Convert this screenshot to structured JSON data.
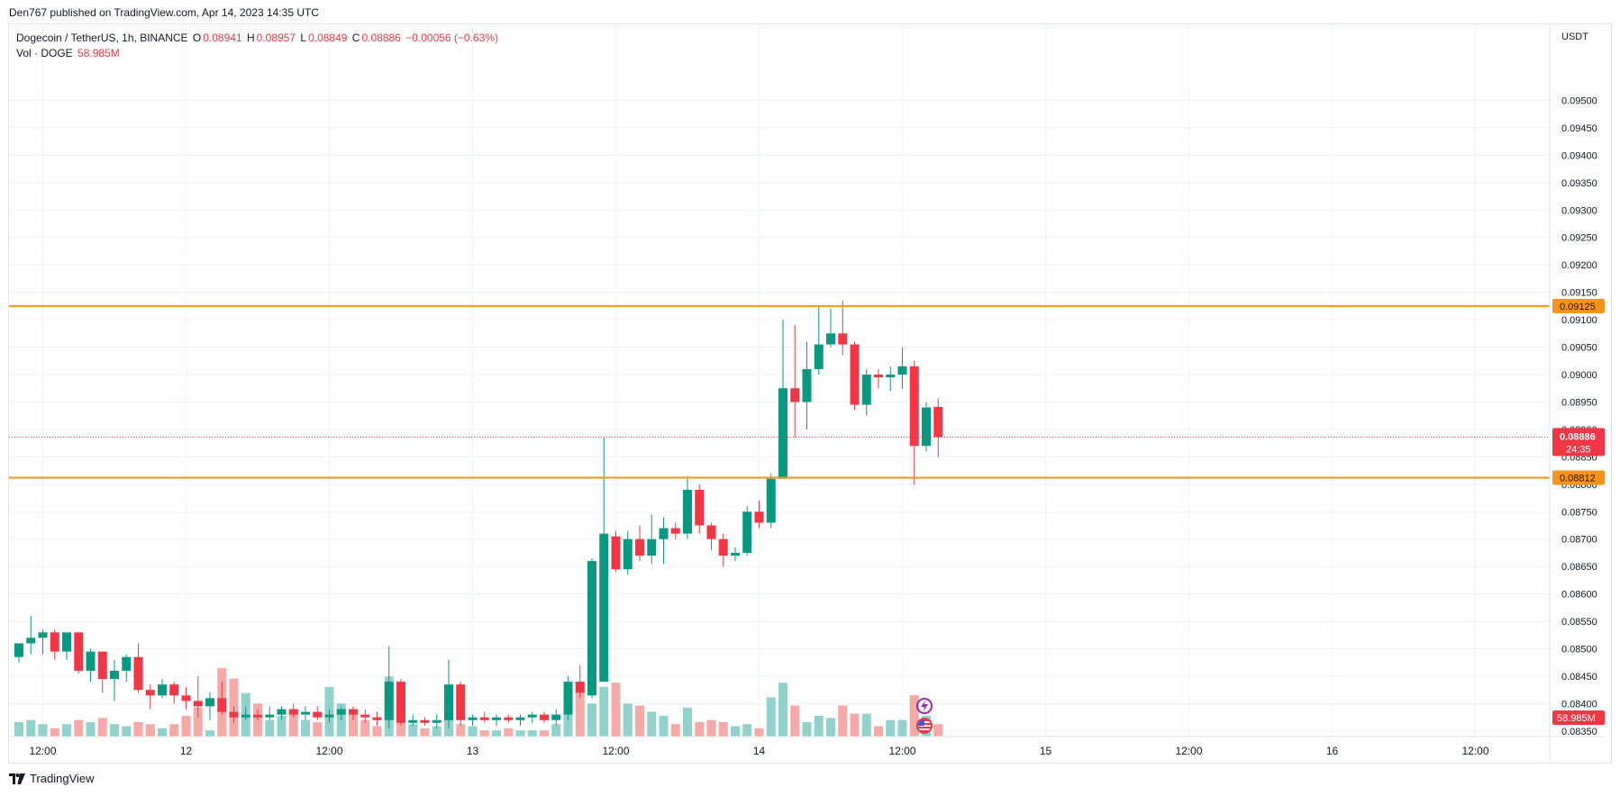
{
  "header": {
    "published": "Den767 published on TradingView.com, Apr 14, 2023 14:35 UTC"
  },
  "legend": {
    "symbol": "Dogecoin / TetherUS, 1h, BINANCE",
    "open_label": "O",
    "open": "0.08941",
    "high_label": "H",
    "high": "0.08957",
    "low_label": "L",
    "low": "0.08849",
    "close_label": "C",
    "close": "0.08886",
    "change": "−0.00056 (−0.63%)",
    "vol_label": "Vol · DOGE",
    "vol": "58.985M"
  },
  "footer": {
    "brand": "TradingView"
  },
  "icons": [
    "lightning-icon",
    "us-flag-icon",
    "tradingview-logo-icon"
  ],
  "colors": {
    "up": "#089981",
    "down": "#f23645",
    "up_vol": "#92d2cc",
    "down_vol": "#f7a9a7",
    "level": "#f7931a",
    "grid": "#f0f3fa"
  },
  "chart_data": {
    "type": "candlestick",
    "interval": "1h",
    "quote_currency": "USDT",
    "x_start": "2023-04-11 10:00",
    "ylim": [
      0.0834,
      0.0955
    ],
    "y_ticks": [
      "0.09500",
      "0.09450",
      "0.09400",
      "0.09350",
      "0.09300",
      "0.09250",
      "0.09200",
      "0.09150",
      "0.09100",
      "0.09050",
      "0.09000",
      "0.08950",
      "0.08900",
      "0.08850",
      "0.08800",
      "0.08750",
      "0.08700",
      "0.08650",
      "0.08600",
      "0.08550",
      "0.08500",
      "0.08450",
      "0.08400",
      "0.08350"
    ],
    "x_ticks": [
      {
        "label": "12:00",
        "time": "2023-04-11 12:00"
      },
      {
        "label": "12",
        "time": "2023-04-12 00:00"
      },
      {
        "label": "12:00",
        "time": "2023-04-12 12:00"
      },
      {
        "label": "13",
        "time": "2023-04-13 00:00"
      },
      {
        "label": "12:00",
        "time": "2023-04-13 12:00"
      },
      {
        "label": "14",
        "time": "2023-04-14 00:00"
      },
      {
        "label": "12:00",
        "time": "2023-04-14 12:00"
      },
      {
        "label": "15",
        "time": "2023-04-15 00:00"
      },
      {
        "label": "12:00",
        "time": "2023-04-15 12:00"
      },
      {
        "label": "16",
        "time": "2023-04-16 00:00"
      },
      {
        "label": "12:00",
        "time": "2023-04-16 12:00"
      }
    ],
    "horizontal_levels": [
      {
        "label": "0.09125",
        "value": 0.09125
      },
      {
        "label": "0.08812",
        "value": 0.08812
      }
    ],
    "last_price": {
      "label": "0.08886",
      "value": 0.08886,
      "countdown": "24:35"
    },
    "last_volume": {
      "label": "58.985M"
    },
    "candles": [
      {
        "o": 0.08485,
        "h": 0.08505,
        "l": 0.08475,
        "c": 0.0851,
        "v": 0.7
      },
      {
        "o": 0.0851,
        "h": 0.0856,
        "l": 0.0849,
        "c": 0.0852,
        "v": 0.8
      },
      {
        "o": 0.0852,
        "h": 0.08535,
        "l": 0.0849,
        "c": 0.0853,
        "v": 0.6
      },
      {
        "o": 0.0853,
        "h": 0.08535,
        "l": 0.0848,
        "c": 0.08495,
        "v": 0.4
      },
      {
        "o": 0.08495,
        "h": 0.0852,
        "l": 0.0848,
        "c": 0.0853,
        "v": 0.6
      },
      {
        "o": 0.0853,
        "h": 0.0853,
        "l": 0.08455,
        "c": 0.0846,
        "v": 0.8
      },
      {
        "o": 0.0846,
        "h": 0.085,
        "l": 0.0844,
        "c": 0.08495,
        "v": 0.7
      },
      {
        "o": 0.08495,
        "h": 0.08495,
        "l": 0.0842,
        "c": 0.08445,
        "v": 0.9
      },
      {
        "o": 0.08445,
        "h": 0.0848,
        "l": 0.08405,
        "c": 0.0846,
        "v": 0.6
      },
      {
        "o": 0.0846,
        "h": 0.0849,
        "l": 0.0844,
        "c": 0.08485,
        "v": 0.5
      },
      {
        "o": 0.08485,
        "h": 0.0851,
        "l": 0.0842,
        "c": 0.08425,
        "v": 0.7
      },
      {
        "o": 0.08425,
        "h": 0.08435,
        "l": 0.0839,
        "c": 0.08415,
        "v": 0.6
      },
      {
        "o": 0.08415,
        "h": 0.08445,
        "l": 0.0841,
        "c": 0.08435,
        "v": 0.4
      },
      {
        "o": 0.08435,
        "h": 0.0844,
        "l": 0.084,
        "c": 0.08415,
        "v": 0.6
      },
      {
        "o": 0.08415,
        "h": 0.0843,
        "l": 0.0839,
        "c": 0.08405,
        "v": 1.0
      },
      {
        "o": 0.08405,
        "h": 0.0845,
        "l": 0.08375,
        "c": 0.08395,
        "v": 1.4
      },
      {
        "o": 0.08395,
        "h": 0.0842,
        "l": 0.0837,
        "c": 0.0841,
        "v": 0.3
      },
      {
        "o": 0.0841,
        "h": 0.0844,
        "l": 0.0838,
        "c": 0.08385,
        "v": 3.3
      },
      {
        "o": 0.08385,
        "h": 0.08395,
        "l": 0.08365,
        "c": 0.08375,
        "v": 2.8
      },
      {
        "o": 0.08375,
        "h": 0.08395,
        "l": 0.0837,
        "c": 0.0838,
        "v": 2.1
      },
      {
        "o": 0.0838,
        "h": 0.0839,
        "l": 0.0837,
        "c": 0.08375,
        "v": 1.6
      },
      {
        "o": 0.08375,
        "h": 0.08395,
        "l": 0.0837,
        "c": 0.0838,
        "v": 0.8
      },
      {
        "o": 0.0838,
        "h": 0.08395,
        "l": 0.0837,
        "c": 0.0839,
        "v": 1.0
      },
      {
        "o": 0.0839,
        "h": 0.084,
        "l": 0.08375,
        "c": 0.0838,
        "v": 1.2
      },
      {
        "o": 0.0838,
        "h": 0.08395,
        "l": 0.0837,
        "c": 0.08385,
        "v": 0.8
      },
      {
        "o": 0.08385,
        "h": 0.08395,
        "l": 0.0837,
        "c": 0.08375,
        "v": 0.7
      },
      {
        "o": 0.08375,
        "h": 0.0839,
        "l": 0.08365,
        "c": 0.0838,
        "v": 2.4
      },
      {
        "o": 0.0838,
        "h": 0.08395,
        "l": 0.0837,
        "c": 0.0839,
        "v": 1.6
      },
      {
        "o": 0.0839,
        "h": 0.08395,
        "l": 0.0837,
        "c": 0.0838,
        "v": 1.2
      },
      {
        "o": 0.0838,
        "h": 0.0839,
        "l": 0.08365,
        "c": 0.08375,
        "v": 0.8
      },
      {
        "o": 0.08375,
        "h": 0.08385,
        "l": 0.0836,
        "c": 0.0837,
        "v": 0.5
      },
      {
        "o": 0.0837,
        "h": 0.08505,
        "l": 0.08355,
        "c": 0.0844,
        "v": 2.9
      },
      {
        "o": 0.0844,
        "h": 0.08445,
        "l": 0.0836,
        "c": 0.08365,
        "v": 1.5
      },
      {
        "o": 0.08365,
        "h": 0.0838,
        "l": 0.0836,
        "c": 0.0837,
        "v": 0.6
      },
      {
        "o": 0.0837,
        "h": 0.08375,
        "l": 0.0836,
        "c": 0.08365,
        "v": 0.4
      },
      {
        "o": 0.08365,
        "h": 0.0838,
        "l": 0.08355,
        "c": 0.0837,
        "v": 0.5
      },
      {
        "o": 0.0837,
        "h": 0.0848,
        "l": 0.08355,
        "c": 0.08435,
        "v": 2.4
      },
      {
        "o": 0.08435,
        "h": 0.0844,
        "l": 0.0836,
        "c": 0.0837,
        "v": 0.6
      },
      {
        "o": 0.0837,
        "h": 0.0838,
        "l": 0.0836,
        "c": 0.08375,
        "v": 0.5
      },
      {
        "o": 0.08375,
        "h": 0.08385,
        "l": 0.08365,
        "c": 0.0837,
        "v": 0.3
      },
      {
        "o": 0.0837,
        "h": 0.0838,
        "l": 0.0836,
        "c": 0.08375,
        "v": 0.3
      },
      {
        "o": 0.08375,
        "h": 0.0838,
        "l": 0.08365,
        "c": 0.0837,
        "v": 0.4
      },
      {
        "o": 0.0837,
        "h": 0.0838,
        "l": 0.0836,
        "c": 0.08375,
        "v": 0.3
      },
      {
        "o": 0.08375,
        "h": 0.08385,
        "l": 0.08365,
        "c": 0.0838,
        "v": 0.3
      },
      {
        "o": 0.0838,
        "h": 0.08385,
        "l": 0.08365,
        "c": 0.0837,
        "v": 0.3
      },
      {
        "o": 0.0837,
        "h": 0.0839,
        "l": 0.0836,
        "c": 0.0838,
        "v": 0.6
      },
      {
        "o": 0.0838,
        "h": 0.0845,
        "l": 0.0837,
        "c": 0.0844,
        "v": 2.1
      },
      {
        "o": 0.0844,
        "h": 0.0847,
        "l": 0.0841,
        "c": 0.0842,
        "v": 2.4
      },
      {
        "o": 0.08415,
        "h": 0.08665,
        "l": 0.0841,
        "c": 0.0866,
        "v": 1.6
      },
      {
        "o": 0.0844,
        "h": 0.08885,
        "l": 0.0844,
        "c": 0.0871,
        "v": 2.4
      },
      {
        "o": 0.08705,
        "h": 0.08715,
        "l": 0.0864,
        "c": 0.08645,
        "v": 2.6
      },
      {
        "o": 0.08645,
        "h": 0.08715,
        "l": 0.08635,
        "c": 0.087,
        "v": 1.6
      },
      {
        "o": 0.087,
        "h": 0.08725,
        "l": 0.0866,
        "c": 0.0867,
        "v": 1.5
      },
      {
        "o": 0.0867,
        "h": 0.08745,
        "l": 0.08655,
        "c": 0.087,
        "v": 1.2
      },
      {
        "o": 0.087,
        "h": 0.0874,
        "l": 0.08655,
        "c": 0.0872,
        "v": 1.0
      },
      {
        "o": 0.0872,
        "h": 0.0873,
        "l": 0.087,
        "c": 0.0871,
        "v": 0.6
      },
      {
        "o": 0.0871,
        "h": 0.08815,
        "l": 0.087,
        "c": 0.0879,
        "v": 1.4
      },
      {
        "o": 0.0879,
        "h": 0.088,
        "l": 0.0871,
        "c": 0.08725,
        "v": 0.7
      },
      {
        "o": 0.08725,
        "h": 0.0873,
        "l": 0.0868,
        "c": 0.087,
        "v": 0.8
      },
      {
        "o": 0.087,
        "h": 0.0871,
        "l": 0.0865,
        "c": 0.0867,
        "v": 0.7
      },
      {
        "o": 0.0867,
        "h": 0.08685,
        "l": 0.0866,
        "c": 0.08675,
        "v": 0.5
      },
      {
        "o": 0.08675,
        "h": 0.0876,
        "l": 0.0867,
        "c": 0.0875,
        "v": 0.6
      },
      {
        "o": 0.0875,
        "h": 0.0877,
        "l": 0.0872,
        "c": 0.0873,
        "v": 0.4
      },
      {
        "o": 0.0873,
        "h": 0.0882,
        "l": 0.0872,
        "c": 0.0881,
        "v": 1.9
      },
      {
        "o": 0.0881,
        "h": 0.091,
        "l": 0.0881,
        "c": 0.08975,
        "v": 2.6
      },
      {
        "o": 0.08975,
        "h": 0.0909,
        "l": 0.08885,
        "c": 0.0895,
        "v": 1.5
      },
      {
        "o": 0.0895,
        "h": 0.0906,
        "l": 0.089,
        "c": 0.0901,
        "v": 0.7
      },
      {
        "o": 0.0901,
        "h": 0.09125,
        "l": 0.09,
        "c": 0.09055,
        "v": 1.0
      },
      {
        "o": 0.09055,
        "h": 0.0912,
        "l": 0.0905,
        "c": 0.09075,
        "v": 0.9
      },
      {
        "o": 0.09075,
        "h": 0.09135,
        "l": 0.09035,
        "c": 0.09055,
        "v": 1.5
      },
      {
        "o": 0.09055,
        "h": 0.0906,
        "l": 0.08935,
        "c": 0.08945,
        "v": 1.1
      },
      {
        "o": 0.08945,
        "h": 0.0901,
        "l": 0.08925,
        "c": 0.09,
        "v": 1.1
      },
      {
        "o": 0.09,
        "h": 0.0901,
        "l": 0.08975,
        "c": 0.08995,
        "v": 0.5
      },
      {
        "o": 0.08995,
        "h": 0.09015,
        "l": 0.0897,
        "c": 0.09,
        "v": 0.8
      },
      {
        "o": 0.09,
        "h": 0.0905,
        "l": 0.08975,
        "c": 0.09015,
        "v": 0.8
      },
      {
        "o": 0.09015,
        "h": 0.09025,
        "l": 0.088,
        "c": 0.0887,
        "v": 2.0
      },
      {
        "o": 0.0887,
        "h": 0.0895,
        "l": 0.0886,
        "c": 0.0894,
        "v": 1.0
      },
      {
        "o": 0.08941,
        "h": 0.08957,
        "l": 0.08849,
        "c": 0.08886,
        "v": 0.6
      }
    ]
  }
}
